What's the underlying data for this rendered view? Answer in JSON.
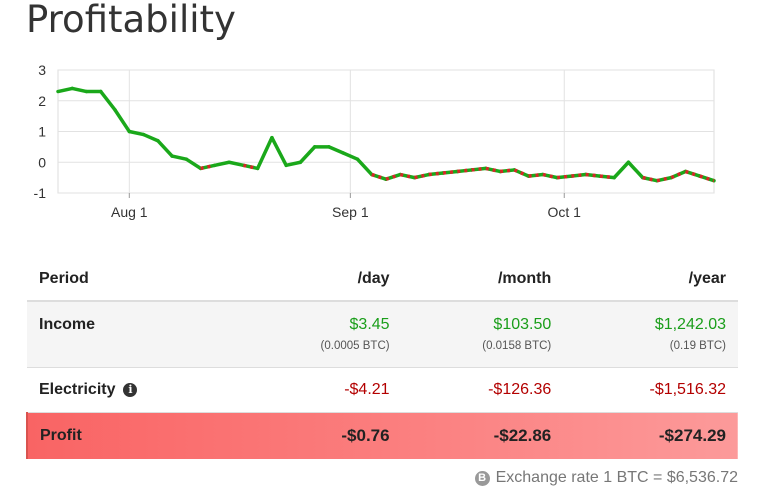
{
  "page": {
    "title": "Profitability"
  },
  "chart_data": {
    "type": "line",
    "x_tick_labels": [
      "Aug 1",
      "Sep 1",
      "Oct 1"
    ],
    "y_ticks": [
      3,
      2,
      1,
      0,
      -1
    ],
    "ylim": [
      -1,
      3
    ],
    "x": [
      "Jul 22",
      "Jul 24",
      "Jul 26",
      "Jul 28",
      "Jul 30",
      "Aug 1",
      "Aug 3",
      "Aug 5",
      "Aug 7",
      "Aug 9",
      "Aug 11",
      "Aug 13",
      "Aug 15",
      "Aug 17",
      "Aug 19",
      "Aug 21",
      "Aug 23",
      "Aug 25",
      "Aug 27",
      "Aug 29",
      "Aug 31",
      "Sep 2",
      "Sep 4",
      "Sep 6",
      "Sep 8",
      "Sep 10",
      "Sep 12",
      "Sep 14",
      "Sep 16",
      "Sep 18",
      "Sep 20",
      "Sep 22",
      "Sep 24",
      "Sep 26",
      "Sep 28",
      "Sep 30",
      "Oct 2",
      "Oct 4",
      "Oct 6",
      "Oct 8",
      "Oct 10",
      "Oct 12",
      "Oct 14",
      "Oct 16",
      "Oct 18",
      "Oct 20",
      "Oct 22"
    ],
    "values": [
      2.3,
      2.4,
      2.3,
      2.3,
      1.7,
      1.0,
      0.9,
      0.7,
      0.2,
      0.1,
      -0.2,
      -0.1,
      0.0,
      -0.1,
      -0.2,
      0.8,
      -0.1,
      0.0,
      0.5,
      0.5,
      0.3,
      0.1,
      -0.4,
      -0.55,
      -0.4,
      -0.5,
      -0.4,
      -0.35,
      -0.3,
      -0.25,
      -0.2,
      -0.3,
      -0.25,
      -0.45,
      -0.4,
      -0.5,
      -0.45,
      -0.4,
      -0.45,
      -0.5,
      0.0,
      -0.5,
      -0.6,
      -0.5,
      -0.3,
      -0.45,
      -0.6
    ],
    "positive_color": "#1aa81a",
    "negative_color": "#d62728",
    "grid": true
  },
  "table": {
    "headers": [
      "Period",
      "/day",
      "/month",
      "/year"
    ],
    "income": {
      "label": "Income",
      "day": "$3.45",
      "day_btc": "(0.0005 BTC)",
      "month": "$103.50",
      "month_btc": "(0.0158 BTC)",
      "year": "$1,242.03",
      "year_btc": "(0.19 BTC)"
    },
    "electricity": {
      "label": "Electricity",
      "info_icon": "i",
      "day": "-$4.21",
      "month": "-$126.36",
      "year": "-$1,516.32"
    },
    "profit": {
      "label": "Profit",
      "day": "-$0.76",
      "month": "-$22.86",
      "year": "-$274.29"
    }
  },
  "footer": {
    "btc_icon": "B",
    "exchange_rate": "Exchange rate 1 BTC = $6,536.72"
  },
  "colors": {
    "income_green": "#1a9e1a",
    "expense_red": "#b30000",
    "profit_row": "#f96464"
  }
}
